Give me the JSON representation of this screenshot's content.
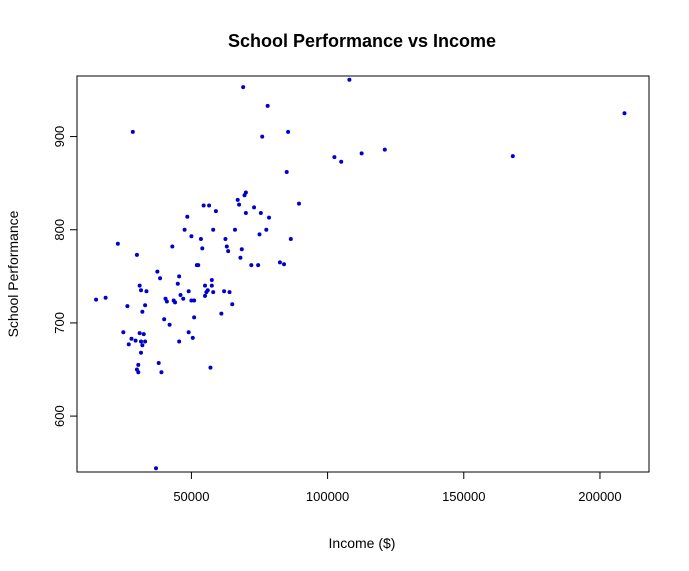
{
  "chart_data": {
    "type": "scatter",
    "title": "School Performance vs Income",
    "xlabel": "Income ($)",
    "ylabel": "School Performance",
    "xlim": [
      8000,
      218000
    ],
    "ylim": [
      540,
      965
    ],
    "x_ticks": [
      50000,
      100000,
      150000,
      200000
    ],
    "y_ticks": [
      600,
      700,
      800,
      900
    ],
    "x_tick_labels": [
      "50000",
      "100000",
      "150000",
      "200000"
    ],
    "y_tick_labels": [
      "600",
      "700",
      "800",
      "900"
    ],
    "grid": false,
    "legend": "none",
    "point_color": "#0000cc",
    "x": [
      15000,
      18500,
      23000,
      25000,
      26500,
      27000,
      28000,
      28500,
      29500,
      30000,
      30000,
      30500,
      30500,
      31000,
      31000,
      31500,
      31500,
      31500,
      32000,
      32000,
      32500,
      33000,
      33000,
      33500,
      37000,
      37500,
      38000,
      38500,
      39000,
      40000,
      40500,
      41000,
      42000,
      43000,
      43500,
      44000,
      45000,
      45500,
      45500,
      46000,
      47000,
      47500,
      48500,
      49000,
      49000,
      50000,
      50000,
      50500,
      51000,
      51000,
      52000,
      52500,
      53500,
      54000,
      54500,
      55000,
      55000,
      55500,
      56000,
      56500,
      57000,
      57500,
      57500,
      58000,
      58000,
      59000,
      61000,
      62000,
      62500,
      63000,
      63500,
      64000,
      65000,
      66000,
      67000,
      67500,
      68000,
      68500,
      69000,
      69500,
      70000,
      70000,
      72000,
      73000,
      74500,
      75000,
      75500,
      76000,
      77500,
      78000,
      78500,
      82500,
      84000,
      85000,
      85500,
      86500,
      89500,
      102500,
      105000,
      108000,
      112500,
      121000,
      168000,
      209000
    ],
    "y": [
      725,
      727,
      785,
      690,
      718,
      677,
      683,
      905,
      681,
      650,
      773,
      655,
      647,
      740,
      689,
      735,
      680,
      668,
      712,
      676,
      688,
      680,
      719,
      734,
      544,
      755,
      657,
      748,
      647,
      704,
      726,
      723,
      698,
      782,
      724,
      722,
      742,
      750,
      680,
      730,
      726,
      800,
      814,
      690,
      734,
      724,
      793,
      684,
      724,
      706,
      762,
      762,
      790,
      780,
      826,
      740,
      729,
      733,
      735,
      826,
      652,
      740,
      746,
      733,
      800,
      820,
      710,
      734,
      790,
      782,
      777,
      733,
      720,
      800,
      832,
      827,
      770,
      779,
      953,
      837,
      840,
      818,
      762,
      824,
      762,
      795,
      818,
      900,
      800,
      933,
      813,
      765,
      763,
      862,
      905,
      790,
      828,
      878,
      873,
      961,
      882,
      886,
      879,
      925
    ]
  }
}
